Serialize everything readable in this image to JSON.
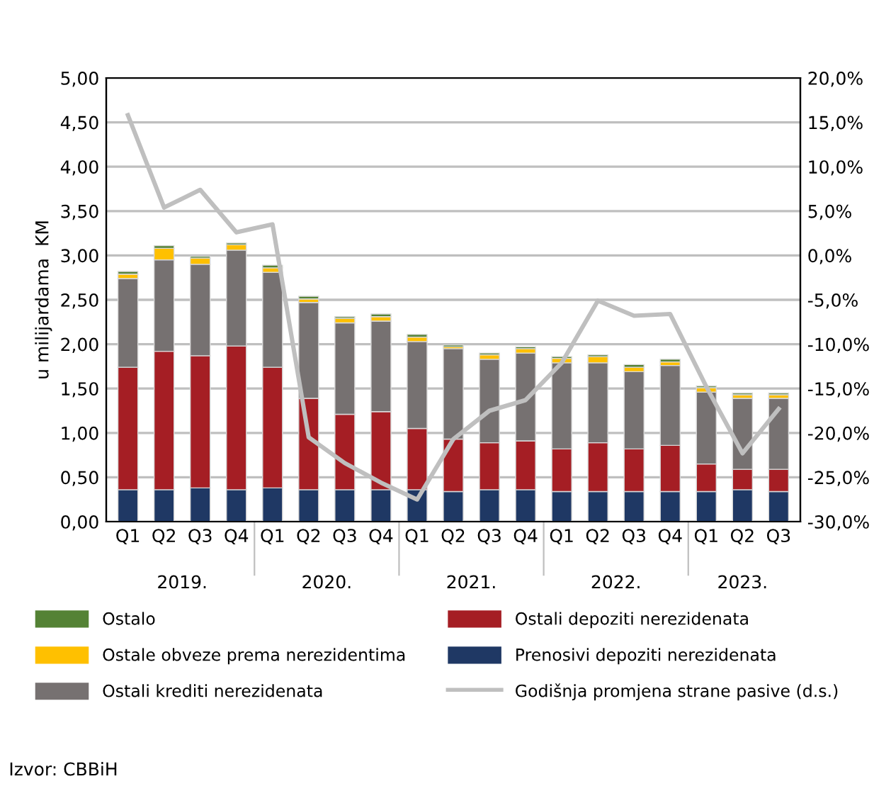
{
  "chart_data": {
    "type": "bar",
    "stacked": true,
    "categories": [
      "Q1",
      "Q2",
      "Q3",
      "Q4",
      "Q1",
      "Q2",
      "Q3",
      "Q4",
      "Q1",
      "Q2",
      "Q3",
      "Q4",
      "Q1",
      "Q2",
      "Q3",
      "Q4",
      "Q1",
      "Q2",
      "Q3"
    ],
    "ylabel": "u milijardama  KM",
    "series": [
      {
        "name": "Prenosivi depoziti nerezidenata",
        "color": "#1f3864",
        "values": [
          0.36,
          0.36,
          0.38,
          0.36,
          0.38,
          0.36,
          0.36,
          0.36,
          0.36,
          0.34,
          0.36,
          0.36,
          0.34,
          0.34,
          0.34,
          0.34,
          0.34,
          0.36,
          0.34
        ]
      },
      {
        "name": "Ostali depoziti nerezidenata",
        "color": "#a51e24",
        "values": [
          1.38,
          1.56,
          1.49,
          1.62,
          1.36,
          1.03,
          0.85,
          0.88,
          0.69,
          0.59,
          0.53,
          0.55,
          0.48,
          0.55,
          0.48,
          0.52,
          0.31,
          0.23,
          0.25
        ]
      },
      {
        "name": "Ostali krediti nerezidenata",
        "color": "#767171",
        "values": [
          1.0,
          1.03,
          1.03,
          1.08,
          1.07,
          1.08,
          1.03,
          1.02,
          0.98,
          1.02,
          0.94,
          0.99,
          0.97,
          0.9,
          0.87,
          0.9,
          0.81,
          0.8,
          0.8
        ]
      },
      {
        "name": "Ostale obveze prema nerezidentima",
        "color": "#ffc000",
        "values": [
          0.05,
          0.13,
          0.07,
          0.06,
          0.05,
          0.04,
          0.05,
          0.05,
          0.05,
          0.02,
          0.05,
          0.05,
          0.05,
          0.07,
          0.05,
          0.04,
          0.05,
          0.04,
          0.04
        ]
      },
      {
        "name": "Ostalo",
        "color": "#548235",
        "values": [
          0.03,
          0.03,
          0.02,
          0.02,
          0.03,
          0.03,
          0.02,
          0.03,
          0.03,
          0.02,
          0.02,
          0.02,
          0.02,
          0.02,
          0.03,
          0.03,
          0.02,
          0.02,
          0.02
        ]
      },
      {
        "name": "Godišnja promjena strane pasive (d.s.)",
        "type": "line",
        "axis": "y2",
        "color": "#bfbfbf",
        "values": [
          15.8,
          5.4,
          7.4,
          2.6,
          3.5,
          -20.5,
          -23.4,
          -25.6,
          -27.5,
          -20.7,
          -17.5,
          -16.3,
          -12.1,
          -5.1,
          -6.8,
          -6.6,
          -14.8,
          -22.3,
          -17.3
        ]
      }
    ],
    "ylim": [
      0,
      5
    ],
    "yticks": [
      {
        "value": 0,
        "label": "0,00"
      },
      {
        "value": 0.5,
        "label": "0,50"
      },
      {
        "value": 1,
        "label": "1,00"
      },
      {
        "value": 1.5,
        "label": "1,50"
      },
      {
        "value": 2,
        "label": "2,00"
      },
      {
        "value": 2.5,
        "label": "2,50"
      },
      {
        "value": 3,
        "label": "3,00"
      },
      {
        "value": 3.5,
        "label": "3,50"
      },
      {
        "value": 4,
        "label": "4,00"
      },
      {
        "value": 4.5,
        "label": "4,50"
      },
      {
        "value": 5,
        "label": "5,00"
      }
    ],
    "y2lim": [
      -30,
      20
    ],
    "y2ticks": [
      {
        "value": -30,
        "label": "-30,0%"
      },
      {
        "value": -25,
        "label": "-25,0%"
      },
      {
        "value": -20,
        "label": "-20,0%"
      },
      {
        "value": -15,
        "label": "-15,0%"
      },
      {
        "value": -10,
        "label": "-10,0%"
      },
      {
        "value": -5,
        "label": "-5,0%"
      },
      {
        "value": 0,
        "label": "0,0%"
      },
      {
        "value": 5,
        "label": "5,0%"
      },
      {
        "value": 10,
        "label": "10,0%"
      },
      {
        "value": 15,
        "label": "15,0%"
      },
      {
        "value": 20,
        "label": "20,0%"
      }
    ],
    "grid": "y",
    "legend": "bottom",
    "annotations": [
      "2019.",
      "2020.",
      "2021.",
      "2022.",
      "2023.",
      "Izvor: CBBiH"
    ]
  }
}
